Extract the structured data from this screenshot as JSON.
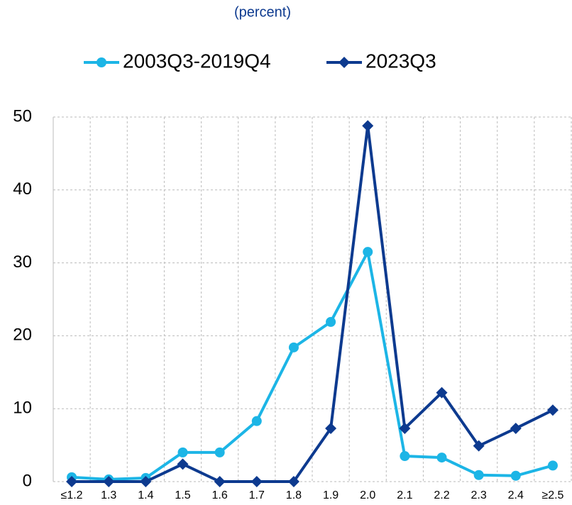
{
  "chart_data": {
    "type": "line",
    "subtitle": "(percent)",
    "categories": [
      "≤1.2",
      "1.3",
      "1.4",
      "1.5",
      "1.6",
      "1.7",
      "1.8",
      "1.9",
      "2.0",
      "2.1",
      "2.2",
      "2.3",
      "2.4",
      "≥2.5"
    ],
    "series": [
      {
        "name": "2003Q3-2019Q4",
        "color": "#1cb5e6",
        "marker": "circle",
        "values": [
          0.6,
          0.3,
          0.5,
          4.0,
          4.0,
          8.3,
          18.4,
          21.9,
          31.5,
          3.5,
          3.3,
          0.9,
          0.8,
          2.2
        ]
      },
      {
        "name": "2023Q3",
        "color": "#0d3a8f",
        "marker": "diamond",
        "values": [
          0,
          0,
          0,
          2.4,
          0,
          0,
          0,
          7.3,
          48.8,
          7.3,
          12.2,
          4.9,
          7.3,
          9.8
        ]
      }
    ],
    "ylim": [
      0,
      50
    ],
    "yticks": [
      0,
      10,
      20,
      30,
      40,
      50
    ],
    "grid": true
  }
}
